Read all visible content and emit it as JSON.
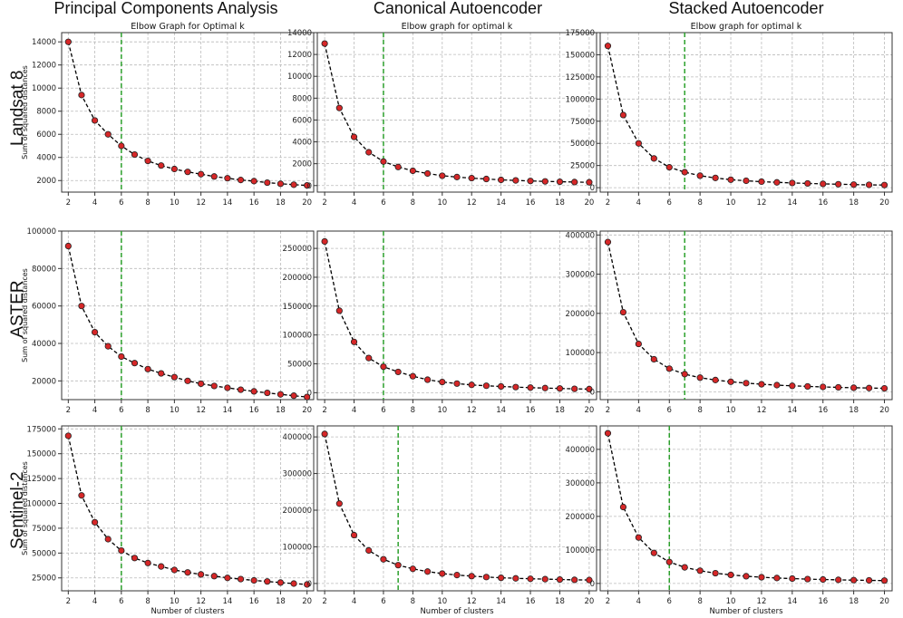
{
  "column_headers": [
    "Principal Components Analysis",
    "Canonical Autoencoder",
    "Stacked Autoencoder"
  ],
  "row_headers": [
    "Landsat 8",
    "ASTER",
    "Sentinel-2"
  ],
  "colors": {
    "line": "#000000",
    "marker_fill": "#d62728",
    "marker_edge": "#222222",
    "optimal_line": "#2ca02c",
    "grid": "#bbbbbb"
  },
  "chart_data": [
    {
      "id": "pca-landsat8",
      "type": "line",
      "title": "Elbow Graph for Optimal k",
      "xlabel": "",
      "ylabel": "Sum of squared distances",
      "x": [
        2,
        3,
        4,
        5,
        6,
        7,
        8,
        9,
        10,
        11,
        12,
        13,
        14,
        15,
        16,
        17,
        18,
        19,
        20
      ],
      "values": [
        14000,
        9400,
        7200,
        6000,
        5000,
        4250,
        3700,
        3300,
        3000,
        2750,
        2550,
        2350,
        2200,
        2050,
        1950,
        1820,
        1720,
        1640,
        1580
      ],
      "optimal_k": 6,
      "xlim": [
        1.5,
        20.5
      ],
      "ylim": [
        1000,
        14800
      ],
      "xticks": [
        2,
        4,
        6,
        8,
        10,
        12,
        14,
        16,
        18,
        20
      ],
      "yticks": [
        2000,
        4000,
        6000,
        8000,
        10000,
        12000,
        14000
      ]
    },
    {
      "id": "cae-landsat8",
      "type": "line",
      "title": "Elbow graph for optimal k",
      "xlabel": "",
      "ylabel": "",
      "x": [
        2,
        3,
        4,
        5,
        6,
        7,
        8,
        9,
        10,
        11,
        12,
        13,
        14,
        15,
        16,
        17,
        18,
        19,
        20
      ],
      "values": [
        13000,
        7100,
        4450,
        3050,
        2200,
        1700,
        1350,
        1100,
        900,
        780,
        680,
        600,
        520,
        470,
        420,
        380,
        350,
        320,
        300
      ],
      "optimal_k": 6,
      "xlim": [
        1.5,
        20.5
      ],
      "ylim": [
        -600,
        14000
      ],
      "xticks": [
        2,
        4,
        6,
        8,
        10,
        12,
        14,
        16,
        18,
        20
      ],
      "yticks": [
        0,
        2000,
        4000,
        6000,
        8000,
        10000,
        12000,
        14000
      ]
    },
    {
      "id": "sae-landsat8",
      "type": "line",
      "title": "Elbow graph for optimal k",
      "xlabel": "",
      "ylabel": "",
      "x": [
        2,
        3,
        4,
        5,
        6,
        7,
        8,
        9,
        10,
        11,
        12,
        13,
        14,
        15,
        16,
        17,
        18,
        19,
        20
      ],
      "values": [
        160000,
        82000,
        50000,
        33000,
        23000,
        17500,
        13500,
        11000,
        9000,
        7800,
        6800,
        6000,
        5300,
        4800,
        4300,
        3900,
        3500,
        3200,
        3000
      ],
      "optimal_k": 7,
      "xlim": [
        1.5,
        20.5
      ],
      "ylim": [
        -5000,
        175000
      ],
      "xticks": [
        2,
        4,
        6,
        8,
        10,
        12,
        14,
        16,
        18,
        20
      ],
      "yticks": [
        0,
        25000,
        50000,
        75000,
        100000,
        125000,
        150000,
        175000
      ]
    },
    {
      "id": "pca-aster",
      "type": "line",
      "title": "",
      "xlabel": "",
      "ylabel": "Sum of squared distances",
      "x": [
        2,
        3,
        4,
        5,
        6,
        7,
        8,
        9,
        10,
        11,
        12,
        13,
        14,
        15,
        16,
        17,
        18,
        19,
        20
      ],
      "values": [
        92000,
        60000,
        46000,
        38500,
        33000,
        29500,
        26300,
        24000,
        22000,
        20000,
        18500,
        17300,
        16300,
        15300,
        14400,
        13600,
        12800,
        12100,
        11400
      ],
      "optimal_k": 6,
      "xlim": [
        1.5,
        20.5
      ],
      "ylim": [
        10000,
        100000
      ],
      "xticks": [
        2,
        4,
        6,
        8,
        10,
        12,
        14,
        16,
        18,
        20
      ],
      "yticks": [
        20000,
        40000,
        60000,
        80000,
        100000
      ]
    },
    {
      "id": "cae-aster",
      "type": "line",
      "title": "",
      "xlabel": "",
      "ylabel": "",
      "x": [
        2,
        3,
        4,
        5,
        6,
        7,
        8,
        9,
        10,
        11,
        12,
        13,
        14,
        15,
        16,
        17,
        18,
        19,
        20
      ],
      "values": [
        262000,
        142000,
        88000,
        60000,
        45000,
        36000,
        28500,
        22500,
        18500,
        15800,
        13500,
        12000,
        10800,
        9700,
        8800,
        8000,
        7300,
        6700,
        6200
      ],
      "optimal_k": 6,
      "xlim": [
        1.5,
        20.5
      ],
      "ylim": [
        -12000,
        280000
      ],
      "xticks": [
        2,
        4,
        6,
        8,
        10,
        12,
        14,
        16,
        18,
        20
      ],
      "yticks": [
        0,
        50000,
        100000,
        150000,
        200000,
        250000
      ]
    },
    {
      "id": "sae-aster",
      "type": "line",
      "title": "",
      "xlabel": "",
      "ylabel": "",
      "x": [
        2,
        3,
        4,
        5,
        6,
        7,
        8,
        9,
        10,
        11,
        12,
        13,
        14,
        15,
        16,
        17,
        18,
        19,
        20
      ],
      "values": [
        382000,
        203000,
        122000,
        83000,
        59000,
        45000,
        36000,
        30000,
        25500,
        22000,
        19200,
        17000,
        15200,
        13700,
        12400,
        11300,
        10300,
        9500,
        8800
      ],
      "optimal_k": 7,
      "xlim": [
        1.5,
        20.5
      ],
      "ylim": [
        -20000,
        410000
      ],
      "xticks": [
        2,
        4,
        6,
        8,
        10,
        12,
        14,
        16,
        18,
        20
      ],
      "yticks": [
        0,
        100000,
        200000,
        300000,
        400000
      ]
    },
    {
      "id": "pca-sentinel2",
      "type": "line",
      "title": "",
      "xlabel": "Number of clusters",
      "ylabel": "Sum of squared distances",
      "x": [
        2,
        3,
        4,
        5,
        6,
        7,
        8,
        9,
        10,
        11,
        12,
        13,
        14,
        15,
        16,
        17,
        18,
        19,
        20
      ],
      "values": [
        168000,
        108000,
        81000,
        64000,
        52500,
        45000,
        40000,
        36500,
        33000,
        30500,
        28500,
        26800,
        25000,
        23800,
        22500,
        21400,
        20300,
        19300,
        18400
      ],
      "optimal_k": 6,
      "xlim": [
        1.5,
        20.5
      ],
      "ylim": [
        12000,
        178000
      ],
      "xticks": [
        2,
        4,
        6,
        8,
        10,
        12,
        14,
        16,
        18,
        20
      ],
      "yticks": [
        25000,
        50000,
        75000,
        100000,
        125000,
        150000,
        175000
      ]
    },
    {
      "id": "cae-sentinel2",
      "type": "line",
      "title": "",
      "xlabel": "Number of clusters",
      "ylabel": "",
      "x": [
        2,
        3,
        4,
        5,
        6,
        7,
        8,
        9,
        10,
        11,
        12,
        13,
        14,
        15,
        16,
        17,
        18,
        19,
        20
      ],
      "values": [
        408000,
        218000,
        132000,
        90000,
        66000,
        50000,
        40000,
        32500,
        27000,
        23000,
        20000,
        17500,
        15500,
        14000,
        12800,
        11800,
        10800,
        10000,
        9400
      ],
      "optimal_k": 7,
      "xlim": [
        1.5,
        20.5
      ],
      "ylim": [
        -20000,
        430000
      ],
      "xticks": [
        2,
        4,
        6,
        8,
        10,
        12,
        14,
        16,
        18,
        20
      ],
      "yticks": [
        0,
        100000,
        200000,
        300000,
        400000
      ]
    },
    {
      "id": "sae-sentinel2",
      "type": "line",
      "title": "",
      "xlabel": "Number of clusters",
      "ylabel": "",
      "x": [
        2,
        3,
        4,
        5,
        6,
        7,
        8,
        9,
        10,
        11,
        12,
        13,
        14,
        15,
        16,
        17,
        18,
        19,
        20
      ],
      "values": [
        448000,
        228000,
        137000,
        91000,
        64000,
        48000,
        38000,
        30500,
        25500,
        21500,
        18500,
        16200,
        14500,
        13000,
        11800,
        10800,
        9900,
        9200,
        8600
      ],
      "optimal_k": 6,
      "xlim": [
        1.5,
        20.5
      ],
      "ylim": [
        -22000,
        470000
      ],
      "xticks": [
        2,
        4,
        6,
        8,
        10,
        12,
        14,
        16,
        18,
        20
      ],
      "yticks": [
        0,
        100000,
        200000,
        300000,
        400000
      ]
    }
  ]
}
